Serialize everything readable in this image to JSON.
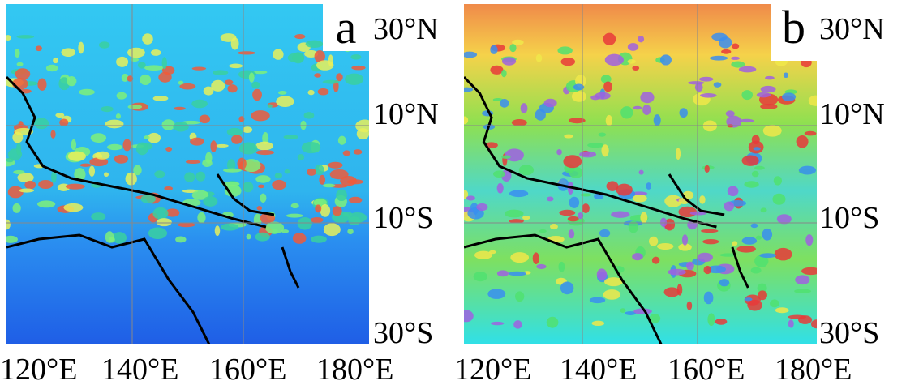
{
  "panels": [
    {
      "label": "a",
      "lat_labels": [
        "30°N",
        "10°N",
        "10°S",
        "30°S"
      ],
      "lon_labels": [
        "120°E",
        "140°E",
        "160°E",
        "180°E"
      ]
    },
    {
      "label": "b",
      "lat_labels": [
        "30°N",
        "10°N",
        "10°S",
        "30°S"
      ],
      "lon_labels": [
        "120°E",
        "140°E",
        "160°E",
        "180°E"
      ]
    }
  ]
}
